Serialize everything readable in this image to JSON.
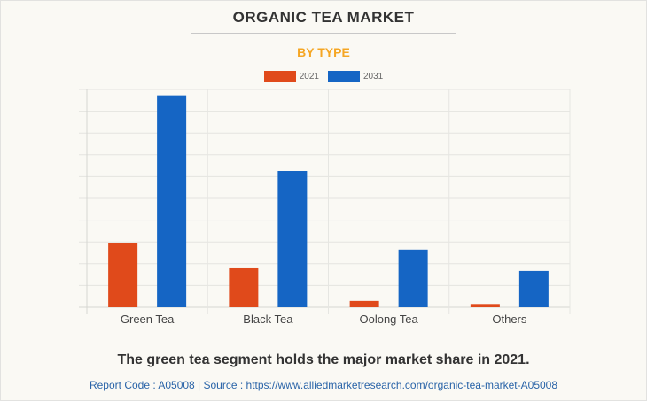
{
  "chart_data": {
    "type": "bar",
    "title": "ORGANIC TEA MARKET",
    "subtitle": "BY TYPE",
    "xlabel": "",
    "ylabel": "",
    "categories": [
      "Green Tea",
      "Black Tea",
      "Oolong Tea",
      "Others"
    ],
    "series": [
      {
        "name": "2021",
        "color": "#e04a1b",
        "values": [
          2.93,
          1.79,
          0.29,
          0.15
        ]
      },
      {
        "name": "2031",
        "color": "#1565c4",
        "values": [
          9.73,
          6.26,
          2.65,
          1.67
        ]
      }
    ],
    "ylim": [
      0,
      10
    ],
    "y_gridlines": 10,
    "y_tick_labels_shown": false,
    "grid": true,
    "legend": "top-center"
  },
  "caption": "The green tea segment holds the major market share in 2021.",
  "source_line": "Report Code : A05008  |  Source : https://www.alliedmarketresearch.com/organic-tea-market-A05008"
}
